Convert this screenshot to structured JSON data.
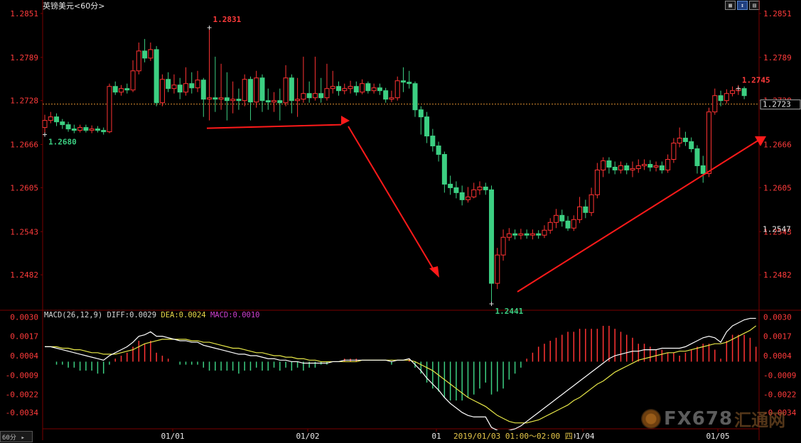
{
  "title": "英镑美元",
  "timeframe": "<60分>",
  "tf_tag": "60分",
  "tf_tag_arrow": "▸",
  "tool_icons": [
    "grid-icon",
    "indicator-icon",
    "settings-icon"
  ],
  "crosshair_time": "2019/01/03  01:00～02:00  四",
  "macd_header": {
    "label": "MACD(26,12,9)",
    "diff": "DIFF:0.0029",
    "dea": "DEA:0.0024",
    "macd": "MACD:0.0010"
  },
  "watermark": {
    "brand": "FX678",
    "cn": "汇通网"
  },
  "colors": {
    "up": "#ff3333",
    "down": "#3ccf82",
    "axis_text": "#ff3b3b",
    "grid": "#7a0000",
    "diff_line": "#ffffff",
    "dea_line": "#e8e848",
    "arrow": "#ff1a1a"
  },
  "chart_data": [
    {
      "type": "candlestick",
      "symbol": "英镑美元",
      "interval": "60分",
      "y_ticks": [
        1.2851,
        1.2789,
        1.2728,
        1.2666,
        1.2605,
        1.2543,
        1.2482
      ],
      "y_tick_labels": [
        "1.2851",
        "1.2789",
        "1.2728",
        "1.2666",
        "1.2605",
        "1.2543",
        "1.2482"
      ],
      "ylim": [
        1.2435,
        1.2855
      ],
      "x_labels": [
        "01/01",
        "01/02",
        "01",
        "01/04",
        "01/05"
      ],
      "current_price": 1.2723,
      "current_price_label": "1.2723",
      "marker_price": 1.2547,
      "marker_price_label": "1.2547",
      "annotations": [
        {
          "label": "1.2831",
          "value": 1.2831,
          "kind": "high"
        },
        {
          "label": "1.2680",
          "value": 1.268,
          "kind": "low"
        },
        {
          "label": "1.2441",
          "value": 1.2441,
          "kind": "low"
        },
        {
          "label": "1.2745",
          "value": 1.2745,
          "kind": "high"
        }
      ],
      "candles": [
        [
          1.269,
          1.27,
          1.2708,
          1.268
        ],
        [
          1.27,
          1.2705,
          1.2712,
          1.2696
        ],
        [
          1.2705,
          1.2698,
          1.271,
          1.2692
        ],
        [
          1.2698,
          1.2694,
          1.2702,
          1.2688
        ],
        [
          1.2694,
          1.2688,
          1.2698,
          1.2684
        ],
        [
          1.2688,
          1.2686,
          1.2694,
          1.2682
        ],
        [
          1.2686,
          1.269,
          1.2694,
          1.2683
        ],
        [
          1.269,
          1.2686,
          1.2694,
          1.2683
        ],
        [
          1.2686,
          1.2688,
          1.2693,
          1.2682
        ],
        [
          1.2688,
          1.2686,
          1.2692,
          1.2683
        ],
        [
          1.2686,
          1.2684,
          1.269,
          1.268
        ],
        [
          1.2684,
          1.2748,
          1.2752,
          1.2682
        ],
        [
          1.2748,
          1.274,
          1.2755,
          1.2736
        ],
        [
          1.274,
          1.2745,
          1.275,
          1.2735
        ],
        [
          1.2745,
          1.2743,
          1.2752,
          1.2738
        ],
        [
          1.2743,
          1.277,
          1.2785,
          1.274
        ],
        [
          1.277,
          1.2798,
          1.281,
          1.2765
        ],
        [
          1.2798,
          1.2788,
          1.2815,
          1.2782
        ],
        [
          1.2788,
          1.28,
          1.281,
          1.2784
        ],
        [
          1.28,
          1.2725,
          1.2805,
          1.272
        ],
        [
          1.2725,
          1.2758,
          1.2765,
          1.272
        ],
        [
          1.2758,
          1.2745,
          1.2768,
          1.274
        ],
        [
          1.2745,
          1.275,
          1.2765,
          1.2738
        ],
        [
          1.275,
          1.274,
          1.276,
          1.273
        ],
        [
          1.274,
          1.2752,
          1.2775,
          1.2735
        ],
        [
          1.2752,
          1.2746,
          1.2768,
          1.2738
        ],
        [
          1.2746,
          1.2757,
          1.277,
          1.274
        ],
        [
          1.2757,
          1.273,
          1.276,
          1.2705
        ],
        [
          1.273,
          1.2732,
          1.2831,
          1.27
        ],
        [
          1.2732,
          1.273,
          1.279,
          1.2712
        ],
        [
          1.273,
          1.2732,
          1.278,
          1.2715
        ],
        [
          1.2732,
          1.2728,
          1.2768,
          1.27
        ],
        [
          1.2728,
          1.273,
          1.2755,
          1.271
        ],
        [
          1.273,
          1.2728,
          1.2745,
          1.2715
        ],
        [
          1.2728,
          1.2758,
          1.2765,
          1.272
        ],
        [
          1.2758,
          1.2726,
          1.2762,
          1.27
        ],
        [
          1.2726,
          1.276,
          1.277,
          1.2718
        ],
        [
          1.276,
          1.2728,
          1.2765,
          1.2712
        ],
        [
          1.2728,
          1.2726,
          1.2745,
          1.2715
        ],
        [
          1.2726,
          1.2728,
          1.274,
          1.2712
        ],
        [
          1.2728,
          1.2725,
          1.2745,
          1.27
        ],
        [
          1.2725,
          1.276,
          1.2778,
          1.272
        ],
        [
          1.276,
          1.2728,
          1.2765,
          1.271
        ],
        [
          1.2728,
          1.273,
          1.276,
          1.2705
        ],
        [
          1.273,
          1.2738,
          1.279,
          1.2725
        ],
        [
          1.2738,
          1.2732,
          1.2755,
          1.2725
        ],
        [
          1.2732,
          1.2738,
          1.279,
          1.2728
        ],
        [
          1.2738,
          1.2732,
          1.276,
          1.2725
        ],
        [
          1.2732,
          1.2745,
          1.278,
          1.2728
        ],
        [
          1.2745,
          1.2748,
          1.277,
          1.2738
        ],
        [
          1.2748,
          1.2742,
          1.2755,
          1.2735
        ],
        [
          1.2742,
          1.2745,
          1.2752,
          1.2737
        ],
        [
          1.2745,
          1.2748,
          1.2756,
          1.2738
        ],
        [
          1.2748,
          1.274,
          1.2755,
          1.2735
        ],
        [
          1.274,
          1.2752,
          1.2758,
          1.2737
        ],
        [
          1.2752,
          1.2742,
          1.2755,
          1.2738
        ],
        [
          1.2742,
          1.2746,
          1.2752,
          1.2738
        ],
        [
          1.2746,
          1.2742,
          1.2752,
          1.2736
        ],
        [
          1.2742,
          1.273,
          1.2746,
          1.2725
        ],
        [
          1.273,
          1.2732,
          1.2742,
          1.2726
        ],
        [
          1.2732,
          1.2756,
          1.2762,
          1.2728
        ],
        [
          1.2756,
          1.2754,
          1.2775,
          1.274
        ],
        [
          1.2754,
          1.2752,
          1.277,
          1.2745
        ],
        [
          1.2752,
          1.2715,
          1.2755,
          1.2705
        ],
        [
          1.2715,
          1.2705,
          1.272,
          1.268
        ],
        [
          1.2705,
          1.2678,
          1.2712,
          1.2668
        ],
        [
          1.2678,
          1.2664,
          1.2688,
          1.2656
        ],
        [
          1.2664,
          1.2652,
          1.267,
          1.2642
        ],
        [
          1.2652,
          1.261,
          1.2656,
          1.2598
        ],
        [
          1.261,
          1.2605,
          1.2622,
          1.2595
        ],
        [
          1.2605,
          1.2598,
          1.2614,
          1.259
        ],
        [
          1.2598,
          1.2588,
          1.2608,
          1.258
        ],
        [
          1.2588,
          1.2592,
          1.2606,
          1.2584
        ],
        [
          1.2592,
          1.2602,
          1.2612,
          1.259
        ],
        [
          1.2602,
          1.2606,
          1.2614,
          1.2595
        ],
        [
          1.2606,
          1.2602,
          1.2612,
          1.2595
        ],
        [
          1.2602,
          1.247,
          1.2608,
          1.2441
        ],
        [
          1.247,
          1.251,
          1.252,
          1.2462
        ],
        [
          1.251,
          1.2535,
          1.2546,
          1.2502
        ],
        [
          1.2535,
          1.254,
          1.2548,
          1.253
        ],
        [
          1.254,
          1.2538,
          1.2546,
          1.2532
        ],
        [
          1.2538,
          1.254,
          1.2547,
          1.2532
        ],
        [
          1.254,
          1.2538,
          1.2546,
          1.2533
        ],
        [
          1.2538,
          1.254,
          1.2546,
          1.2532
        ],
        [
          1.254,
          1.2538,
          1.2545,
          1.2533
        ],
        [
          1.2538,
          1.2545,
          1.2552,
          1.2534
        ],
        [
          1.2545,
          1.2556,
          1.2562,
          1.254
        ],
        [
          1.2556,
          1.2566,
          1.2575,
          1.2548
        ],
        [
          1.2566,
          1.2558,
          1.2574,
          1.255
        ],
        [
          1.2558,
          1.2548,
          1.2565,
          1.2544
        ],
        [
          1.2548,
          1.256,
          1.2566,
          1.2544
        ],
        [
          1.256,
          1.2578,
          1.2592,
          1.2555
        ],
        [
          1.2578,
          1.257,
          1.2588,
          1.2562
        ],
        [
          1.257,
          1.2595,
          1.2605,
          1.2565
        ],
        [
          1.2595,
          1.263,
          1.264,
          1.259
        ],
        [
          1.263,
          1.2643,
          1.2648,
          1.262
        ],
        [
          1.2643,
          1.2634,
          1.2648,
          1.2625
        ],
        [
          1.2634,
          1.263,
          1.2642,
          1.2624
        ],
        [
          1.263,
          1.2636,
          1.2642,
          1.2625
        ],
        [
          1.2636,
          1.263,
          1.264,
          1.2624
        ],
        [
          1.263,
          1.2632,
          1.2642,
          1.262
        ],
        [
          1.2632,
          1.2636,
          1.2645,
          1.2626
        ],
        [
          1.2636,
          1.2638,
          1.2645,
          1.263
        ],
        [
          1.2638,
          1.2634,
          1.2644,
          1.2628
        ],
        [
          1.2634,
          1.2636,
          1.2642,
          1.2628
        ],
        [
          1.2636,
          1.263,
          1.2642,
          1.2625
        ],
        [
          1.263,
          1.2645,
          1.2652,
          1.2626
        ],
        [
          1.2645,
          1.2668,
          1.2675,
          1.264
        ],
        [
          1.2668,
          1.2675,
          1.269,
          1.2662
        ],
        [
          1.2675,
          1.267,
          1.2684,
          1.2664
        ],
        [
          1.267,
          1.266,
          1.2676,
          1.2655
        ],
        [
          1.266,
          1.2636,
          1.2665,
          1.2625
        ],
        [
          1.2636,
          1.2625,
          1.265,
          1.2612
        ],
        [
          1.2625,
          1.2712,
          1.2718,
          1.262
        ],
        [
          1.2712,
          1.2735,
          1.2745,
          1.2708
        ],
        [
          1.2735,
          1.2728,
          1.2742,
          1.272
        ],
        [
          1.2728,
          1.2738,
          1.2744,
          1.2724
        ],
        [
          1.2738,
          1.2742,
          1.2748,
          1.2734
        ],
        [
          1.2742,
          1.2745,
          1.275,
          1.2736
        ],
        [
          1.2745,
          1.2735,
          1.2748,
          1.273
        ]
      ]
    },
    {
      "type": "bar",
      "name": "MACD",
      "y_ticks": [
        0.003,
        0.0017,
        0.0004,
        -0.0009,
        -0.0022,
        -0.0034
      ],
      "y_tick_labels": [
        "0.0030",
        "0.0017",
        "0.0004",
        "-0.0009",
        "-0.0022",
        "-0.0034"
      ],
      "ylim": [
        -0.0044,
        0.0033
      ],
      "series": [
        {
          "name": "DIFF",
          "values": [
            0.001,
            0.001,
            0.0009,
            0.0008,
            0.0007,
            0.0006,
            0.0005,
            0.0004,
            0.0003,
            0.0002,
            0.0001,
            0.0004,
            0.0006,
            0.0008,
            0.001,
            0.0013,
            0.0017,
            0.0018,
            0.002,
            0.0017,
            0.0017,
            0.0016,
            0.0015,
            0.0014,
            0.0014,
            0.0013,
            0.0013,
            0.0011,
            0.001,
            0.0009,
            0.0008,
            0.0007,
            0.0006,
            0.0005,
            0.0005,
            0.0004,
            0.0004,
            0.0003,
            0.0002,
            0.0002,
            0.0001,
            0.0001,
            0.0,
            0.0,
            -0.0001,
            -0.0001,
            -0.0001,
            -0.0001,
            -0.0001,
            0.0,
            0.0,
            0.0001,
            0.0001,
            0.0001,
            0.0001,
            0.0001,
            0.0001,
            0.0001,
            0.0001,
            0.0,
            0.0001,
            0.0001,
            0.0002,
            -0.0002,
            -0.0006,
            -0.0011,
            -0.0015,
            -0.0019,
            -0.0024,
            -0.0028,
            -0.0031,
            -0.0034,
            -0.0036,
            -0.0037,
            -0.0037,
            -0.0037,
            -0.0044,
            -0.0046,
            -0.0047,
            -0.0046,
            -0.0045,
            -0.0043,
            -0.004,
            -0.0037,
            -0.0034,
            -0.0031,
            -0.0028,
            -0.0025,
            -0.0022,
            -0.0019,
            -0.0016,
            -0.0013,
            -0.001,
            -0.0007,
            -0.0004,
            -0.0001,
            0.0002,
            0.0004,
            0.0005,
            0.0006,
            0.0007,
            0.0007,
            0.0008,
            0.0008,
            0.0008,
            0.0009,
            0.0009,
            0.0009,
            0.0009,
            0.001,
            0.0012,
            0.0014,
            0.0016,
            0.0017,
            0.0016,
            0.0013,
            0.002,
            0.0024,
            0.0026,
            0.0028,
            0.0029,
            0.0029
          ]
        },
        {
          "name": "DEA",
          "values": [
            0.001,
            0.001,
            0.001,
            0.0009,
            0.0009,
            0.0008,
            0.0008,
            0.0007,
            0.0006,
            0.0006,
            0.0005,
            0.0005,
            0.0005,
            0.0006,
            0.0007,
            0.0008,
            0.001,
            0.0012,
            0.0013,
            0.0014,
            0.0015,
            0.0015,
            0.0015,
            0.0015,
            0.0015,
            0.0014,
            0.0014,
            0.0013,
            0.0013,
            0.0012,
            0.0011,
            0.001,
            0.0009,
            0.0009,
            0.0008,
            0.0007,
            0.0006,
            0.0006,
            0.0005,
            0.0004,
            0.0004,
            0.0003,
            0.0003,
            0.0002,
            0.0002,
            0.0001,
            0.0001,
            0.0,
            0.0,
            0.0,
            0.0,
            0.0,
            0.0,
            0.0,
            0.0001,
            0.0001,
            0.0001,
            0.0001,
            0.0001,
            0.0001,
            0.0001,
            0.0001,
            0.0001,
            0.0,
            -0.0002,
            -0.0004,
            -0.0006,
            -0.0009,
            -0.0012,
            -0.0015,
            -0.0018,
            -0.0021,
            -0.0024,
            -0.0026,
            -0.0028,
            -0.003,
            -0.0033,
            -0.0036,
            -0.0038,
            -0.004,
            -0.0041,
            -0.0041,
            -0.0041,
            -0.004,
            -0.0039,
            -0.0037,
            -0.0035,
            -0.0033,
            -0.0031,
            -0.0029,
            -0.0026,
            -0.0024,
            -0.0021,
            -0.0018,
            -0.0015,
            -0.0013,
            -0.001,
            -0.0007,
            -0.0005,
            -0.0003,
            -0.0001,
            0.0001,
            0.0002,
            0.0003,
            0.0004,
            0.0005,
            0.0006,
            0.0006,
            0.0007,
            0.0007,
            0.0008,
            0.0009,
            0.001,
            0.0011,
            0.0012,
            0.0012,
            0.0013,
            0.0015,
            0.0017,
            0.0019,
            0.0021,
            0.0024
          ]
        }
      ]
    }
  ]
}
